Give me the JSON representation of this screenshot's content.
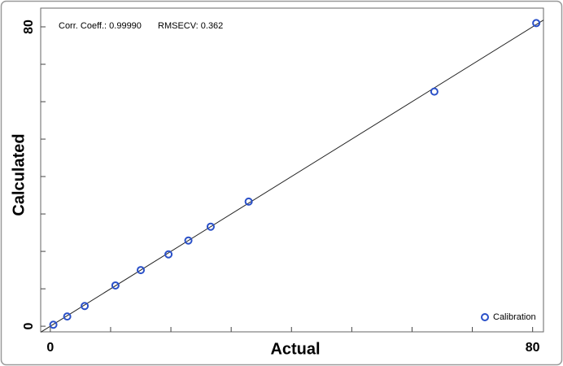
{
  "chart_data": {
    "type": "scatter",
    "annotations": [
      "Corr. Coeff.: 0.99990",
      "RMSECV: 0.362"
    ],
    "x_label": "Actual",
    "y_label": "Calculated",
    "xlim": [
      -1.6,
      81.8
    ],
    "ylim": [
      -1.5,
      85
    ],
    "xticks": [
      0,
      80
    ],
    "yticks": [
      0,
      80
    ],
    "minor_xticks": [
      10,
      20,
      30,
      40,
      50,
      60,
      70
    ],
    "minor_yticks": [
      10,
      20,
      30,
      40,
      50,
      60,
      70
    ],
    "legend": "bottom-right",
    "fit_line": {
      "x": [
        -1.6,
        81.8
      ],
      "y": [
        -1.6,
        81.8
      ],
      "color": "#222222"
    },
    "series": [
      {
        "name": "Calibration",
        "color": "#2a50c8",
        "x": [
          0.5,
          2.8,
          5.7,
          10.8,
          15.0,
          19.6,
          22.9,
          26.6,
          32.9,
          63.7,
          80.6
        ],
        "values": [
          0.4,
          2.6,
          5.4,
          10.9,
          15.0,
          19.2,
          22.9,
          26.6,
          33.3,
          62.7,
          81.0
        ]
      }
    ]
  }
}
